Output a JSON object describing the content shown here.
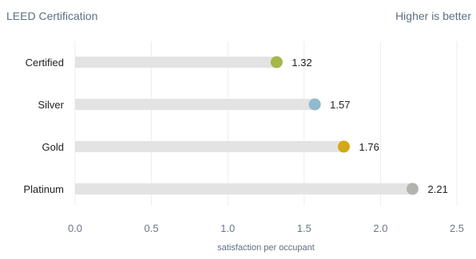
{
  "header": {
    "left_title": "LEED Certification",
    "right_note": "Higher is better"
  },
  "chart_data": {
    "type": "bar",
    "categories": [
      "Certified",
      "Silver",
      "Gold",
      "Platinum"
    ],
    "values": [
      1.32,
      1.57,
      1.76,
      2.21
    ],
    "value_labels": [
      "1.32",
      "1.57",
      "1.76",
      "2.21"
    ],
    "dot_colors": [
      "#a3b845",
      "#8fbad0",
      "#d4a914",
      "#b3b3ae"
    ],
    "track_color": "#e3e3e3",
    "grid_color": "#ececec",
    "xlabel": "satisfaction per occupant",
    "xlim": [
      0,
      2.5
    ],
    "xticks": [
      0.0,
      0.5,
      1.0,
      1.5,
      2.0,
      2.5
    ],
    "xtick_labels": [
      "0.0",
      "0.5",
      "1.0",
      "1.5",
      "2.0",
      "2.5"
    ],
    "grid": true,
    "orientation": "horizontal"
  }
}
